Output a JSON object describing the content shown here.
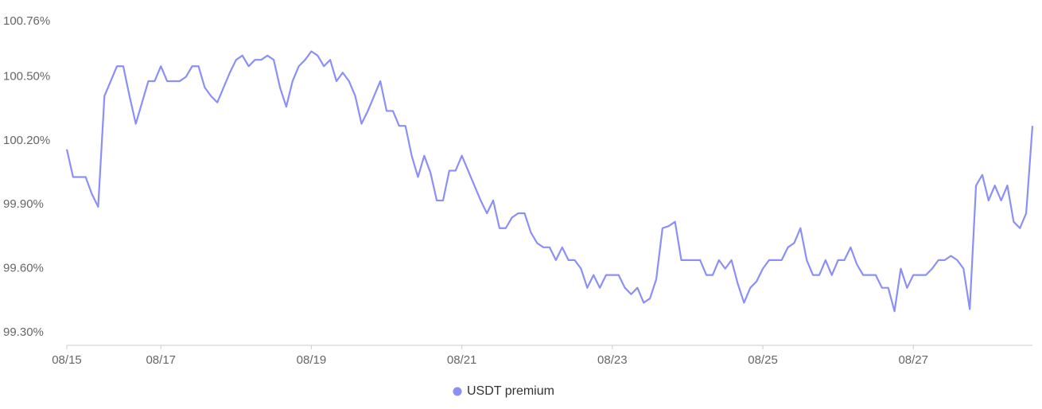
{
  "chart_data": {
    "type": "line",
    "categories": [
      "08/15",
      null,
      null,
      null,
      null,
      null,
      null,
      null,
      null,
      null,
      null,
      null,
      null,
      null,
      null,
      "08/17",
      null,
      null,
      null,
      null,
      null,
      null,
      null,
      null,
      null,
      null,
      null,
      null,
      null,
      null,
      null,
      null,
      null,
      null,
      null,
      null,
      null,
      null,
      null,
      "08/19",
      null,
      null,
      null,
      null,
      null,
      null,
      null,
      null,
      null,
      null,
      null,
      null,
      null,
      null,
      null,
      null,
      null,
      null,
      null,
      null,
      null,
      null,
      null,
      "08/21",
      null,
      null,
      null,
      null,
      null,
      null,
      null,
      null,
      null,
      null,
      null,
      null,
      null,
      null,
      null,
      null,
      null,
      null,
      null,
      null,
      null,
      null,
      null,
      "08/23",
      null,
      null,
      null,
      null,
      null,
      null,
      null,
      null,
      null,
      null,
      null,
      null,
      null,
      null,
      null,
      null,
      null,
      null,
      null,
      null,
      null,
      null,
      null,
      "08/25",
      null,
      null,
      null,
      null,
      null,
      null,
      null,
      null,
      null,
      null,
      null,
      null,
      null,
      null,
      null,
      null,
      null,
      null,
      null,
      null,
      null,
      null,
      null,
      "08/27",
      null,
      null,
      null,
      null,
      null,
      null,
      null,
      null,
      null,
      null,
      null,
      null,
      null,
      null,
      null,
      null,
      null,
      null,
      null
    ],
    "series": [
      {
        "name": "USDT premium",
        "color": "#8b8ff6",
        "values": [
          100.16,
          100.03,
          100.03,
          100.03,
          99.95,
          99.89,
          100.41,
          100.48,
          100.55,
          100.55,
          100.41,
          100.28,
          100.38,
          100.48,
          100.48,
          100.55,
          100.48,
          100.48,
          100.48,
          100.5,
          100.55,
          100.55,
          100.45,
          100.41,
          100.38,
          100.45,
          100.52,
          100.58,
          100.6,
          100.55,
          100.58,
          100.58,
          100.6,
          100.58,
          100.45,
          100.36,
          100.48,
          100.55,
          100.58,
          100.62,
          100.6,
          100.55,
          100.58,
          100.48,
          100.52,
          100.48,
          100.41,
          100.28,
          100.34,
          100.41,
          100.48,
          100.34,
          100.34,
          100.27,
          100.27,
          100.13,
          100.03,
          100.13,
          100.05,
          99.92,
          99.92,
          100.06,
          100.06,
          100.13,
          100.06,
          99.99,
          99.92,
          99.86,
          99.92,
          99.79,
          99.79,
          99.84,
          99.86,
          99.86,
          99.77,
          99.72,
          99.7,
          99.7,
          99.64,
          99.7,
          99.64,
          99.64,
          99.6,
          99.51,
          99.57,
          99.51,
          99.57,
          99.57,
          99.57,
          99.51,
          99.48,
          99.51,
          99.44,
          99.46,
          99.55,
          99.79,
          99.8,
          99.82,
          99.64,
          99.64,
          99.64,
          99.64,
          99.57,
          99.57,
          99.64,
          99.6,
          99.64,
          99.53,
          99.44,
          99.51,
          99.54,
          99.6,
          99.64,
          99.64,
          99.64,
          99.7,
          99.72,
          99.79,
          99.64,
          99.57,
          99.57,
          99.64,
          99.57,
          99.64,
          99.64,
          99.7,
          99.62,
          99.57,
          99.57,
          99.57,
          99.51,
          99.51,
          99.4,
          99.6,
          99.51,
          99.57,
          99.57,
          99.57,
          99.6,
          99.64,
          99.64,
          99.66,
          99.64,
          99.6,
          99.41,
          99.99,
          100.04,
          99.92,
          99.99,
          99.92,
          99.99,
          99.82,
          99.79,
          99.86,
          100.27
        ]
      }
    ],
    "ylim": [
      99.24,
      100.76
    ],
    "yticks": [
      {
        "value": 99.3,
        "label": "99.30%"
      },
      {
        "value": 99.6,
        "label": "99.60%"
      },
      {
        "value": 99.9,
        "label": "99.90%"
      },
      {
        "value": 100.2,
        "label": "100.20%"
      },
      {
        "value": 100.5,
        "label": "100.50%"
      },
      {
        "value": 100.76,
        "label": "100.76%"
      }
    ],
    "grid": false,
    "legend": "bottom"
  }
}
